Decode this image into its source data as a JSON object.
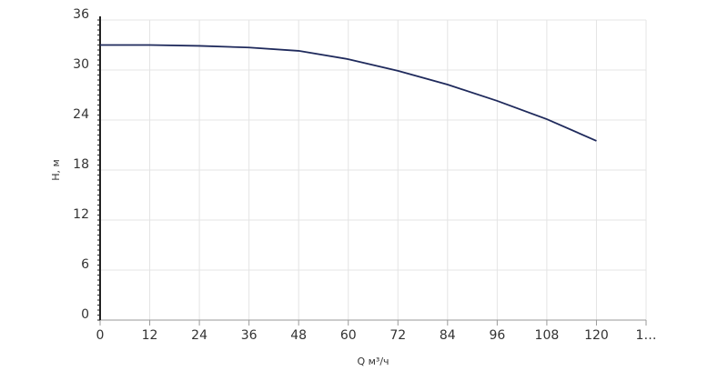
{
  "chart_data": {
    "type": "line",
    "x_label": "Q м³/ч",
    "y_label": "H, м",
    "x": [
      0,
      12,
      24,
      36,
      48,
      60,
      72,
      84,
      96,
      108,
      120
    ],
    "series": [
      {
        "color": "#1f2a5c",
        "values": [
          33.0,
          33.0,
          32.9,
          32.7,
          32.3,
          31.3,
          29.9,
          28.25,
          26.3,
          24.1,
          21.5
        ]
      }
    ],
    "xlim": [
      0,
      132
    ],
    "ylim": [
      0,
      36
    ],
    "xticks": [
      0,
      12,
      24,
      36,
      48,
      60,
      72,
      84,
      96,
      108,
      120,
      {
        "value": 132,
        "label": "1…"
      }
    ],
    "yticks": [
      0,
      6,
      12,
      18,
      24,
      30,
      36
    ],
    "grid": true
  }
}
